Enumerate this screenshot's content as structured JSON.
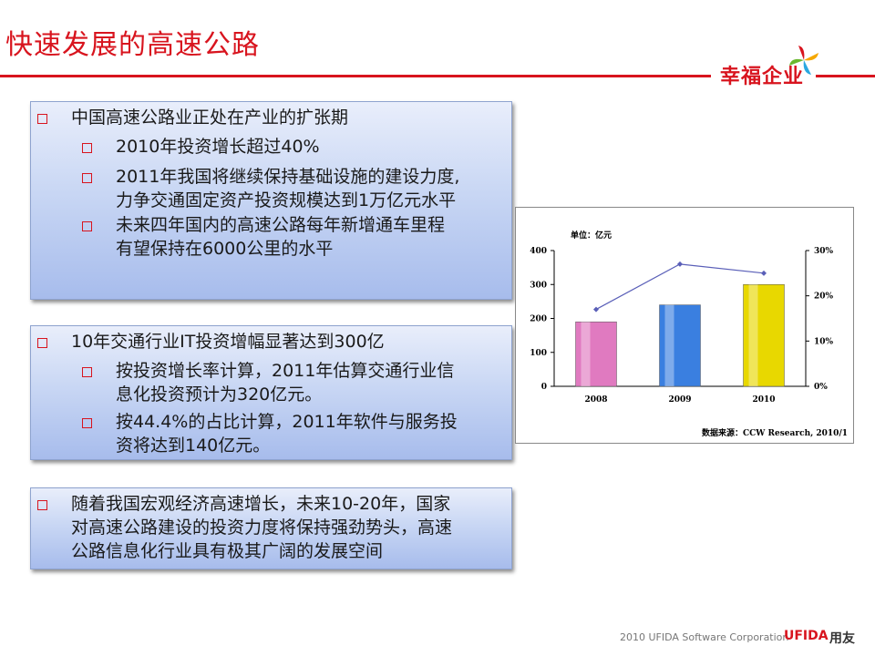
{
  "slide": {
    "title": "快速发展的高速公路",
    "brand": "幸福企业",
    "footer_text": "2010 UFIDA Software Corporation",
    "footer_brand": "UFIDA",
    "footer_brand_cn": "用友",
    "accent_color": "#d8141e"
  },
  "box1": {
    "main": "中国高速公路业正处在产业的扩张期",
    "sub1": "2010年投资增长超过40%",
    "sub2_line1": "2011年我国将继续保持基础设施的建设力度,",
    "sub2_line2": "力争交通固定资产投资规模达到1万亿元水平",
    "sub3_line1": "未来四年国内的高速公路每年新增通车里程",
    "sub3_line2": "有望保持在6000公里的水平"
  },
  "box2": {
    "main": "10年交通行业IT投资增幅显著达到300亿",
    "sub1_line1": "按投资增长率计算，2011年估算交通行业信",
    "sub1_line2": "息化投资预计为320亿元。",
    "sub2_line1": "按44.4%的占比计算，2011年软件与服务投",
    "sub2_line2": "资将达到140亿元。"
  },
  "box3": {
    "line1": "随着我国宏观经济高速增长，未来10-20年，国家",
    "line2": "对高速公路建设的投资力度将保持强劲势头，高速",
    "line3": "公路信息化行业具有极其广阔的发展空间"
  },
  "chart_data": {
    "type": "bar",
    "unit_label": "单位：亿元",
    "source": "数据来源：CCW Research, 2010/1",
    "categories": [
      "2008",
      "2009",
      "2010"
    ],
    "values": [
      190,
      240,
      300
    ],
    "bar_colors": [
      "#e07ac0",
      "#3a7fe0",
      "#e8d800"
    ],
    "ylim": [
      0,
      400
    ],
    "yticks": [
      "0",
      "100",
      "200",
      "300",
      "400"
    ],
    "line_values": [
      17,
      27,
      25
    ],
    "y2lim": [
      0,
      30
    ],
    "y2ticks": [
      "0%",
      "10%",
      "20%",
      "30%"
    ],
    "line_color": "#5a5fb8"
  }
}
